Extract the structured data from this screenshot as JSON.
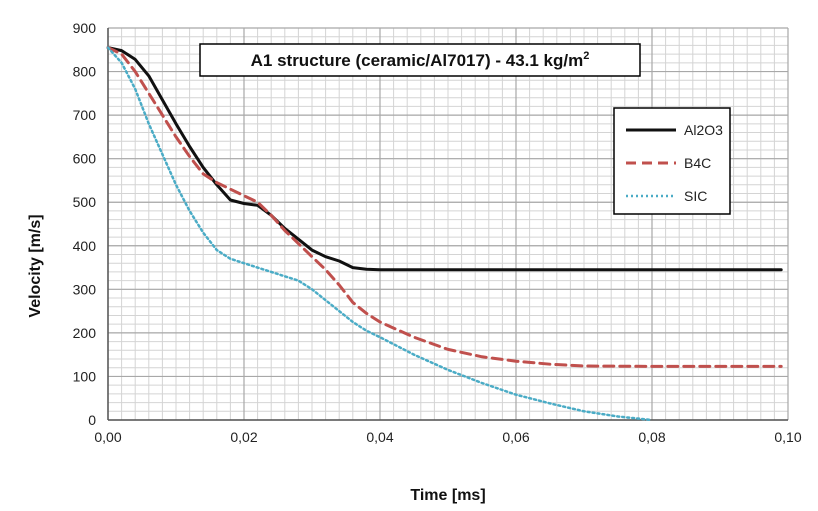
{
  "chart_data": {
    "type": "line",
    "title": "A1 structure (ceramic/Al7017) - 43.1 kg/m",
    "title_superscript": "2",
    "xlabel": "Time [ms]",
    "ylabel": "Velocity [m/s]",
    "xlim": [
      0,
      0.1
    ],
    "ylim": [
      0,
      900
    ],
    "x_ticks": [
      "0,00",
      "0,02",
      "0,04",
      "0,06",
      "0,08",
      "0,10"
    ],
    "x_tick_values": [
      0,
      0.02,
      0.04,
      0.06,
      0.08,
      0.1
    ],
    "y_ticks": [
      "0",
      "100",
      "200",
      "300",
      "400",
      "500",
      "600",
      "700",
      "800",
      "900"
    ],
    "y_tick_values": [
      0,
      100,
      200,
      300,
      400,
      500,
      600,
      700,
      800,
      900
    ],
    "grid": true,
    "legend_position": "top-right",
    "series": [
      {
        "name": "Al2O3",
        "color": "#111111",
        "style": "solid",
        "x": [
          0,
          0.002,
          0.004,
          0.006,
          0.008,
          0.01,
          0.012,
          0.014,
          0.016,
          0.018,
          0.02,
          0.022,
          0.024,
          0.026,
          0.028,
          0.03,
          0.032,
          0.034,
          0.036,
          0.038,
          0.04,
          0.05,
          0.06,
          0.07,
          0.08,
          0.09,
          0.099
        ],
        "y": [
          855,
          848,
          828,
          790,
          735,
          680,
          628,
          580,
          540,
          505,
          497,
          493,
          470,
          440,
          415,
          390,
          375,
          365,
          350,
          346,
          345,
          345,
          345,
          345,
          345,
          345,
          345
        ]
      },
      {
        "name": "B4C",
        "color": "#c0504d",
        "style": "dashed",
        "x": [
          0,
          0.002,
          0.004,
          0.006,
          0.008,
          0.01,
          0.012,
          0.014,
          0.016,
          0.018,
          0.02,
          0.022,
          0.024,
          0.026,
          0.028,
          0.03,
          0.032,
          0.034,
          0.036,
          0.038,
          0.04,
          0.045,
          0.05,
          0.055,
          0.06,
          0.065,
          0.07,
          0.08,
          0.09,
          0.099
        ],
        "y": [
          855,
          840,
          800,
          750,
          700,
          650,
          605,
          565,
          545,
          530,
          515,
          500,
          470,
          435,
          405,
          375,
          345,
          310,
          270,
          245,
          225,
          190,
          162,
          145,
          135,
          128,
          124,
          123,
          123,
          123
        ]
      },
      {
        "name": "SIC",
        "color": "#4bacc6",
        "style": "dotted",
        "x": [
          0,
          0.002,
          0.004,
          0.006,
          0.008,
          0.01,
          0.012,
          0.014,
          0.016,
          0.018,
          0.02,
          0.022,
          0.024,
          0.026,
          0.028,
          0.03,
          0.032,
          0.034,
          0.036,
          0.038,
          0.04,
          0.045,
          0.05,
          0.055,
          0.06,
          0.065,
          0.07,
          0.075,
          0.08
        ],
        "y": [
          855,
          820,
          760,
          680,
          610,
          540,
          480,
          430,
          390,
          370,
          360,
          350,
          340,
          330,
          320,
          300,
          275,
          250,
          225,
          205,
          190,
          150,
          115,
          85,
          58,
          38,
          20,
          8,
          0
        ]
      }
    ]
  }
}
